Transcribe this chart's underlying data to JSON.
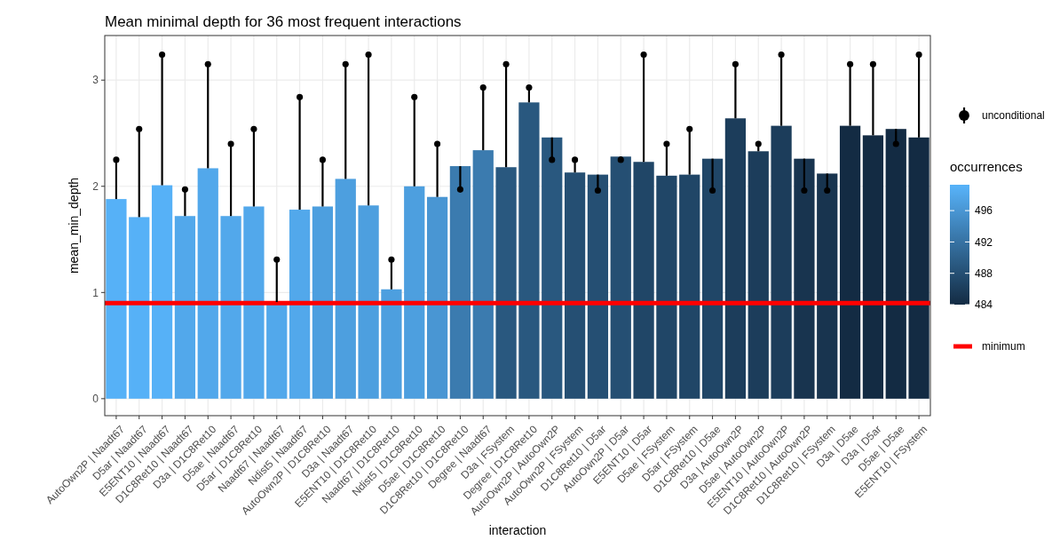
{
  "chart_data": {
    "type": "bar",
    "title": "Mean minimal depth for 36 most frequent interactions",
    "xlabel": "interaction",
    "ylabel": "mean_min_depth",
    "clabel": "occurrences",
    "categories": [
      "AutoOwn2P | Naadt67",
      "D5ar | Naadt67",
      "E5ENT10 | Naadt67",
      "D1C8Ret10 | Naadt67",
      "D3a | D1C8Ret10",
      "D5ae | Naadt67",
      "D5ar | D1C8Ret10",
      "Naadt67 | Naadt67",
      "Ndist5 | Naadt67",
      "AutoOwn2P | D1C8Ret10",
      "D3a | Naadt67",
      "E5ENT10 | D1C8Ret10",
      "Naadt67 | D1C8Ret10",
      "Ndist5 | D1C8Ret10",
      "D5ae | D1C8Ret10",
      "D1C8Ret10 | D1C8Ret10",
      "Degree | Naadt67",
      "D3a | FSystem",
      "Degree | D1C8Ret10",
      "AutoOwn2P | AutoOwn2P",
      "AutoOwn2P | FSystem",
      "D1C8Ret10 | D5ar",
      "AutoOwn2P | D5ar",
      "E5ENT10 | D5ar",
      "D5ae | FSystem",
      "D5ar | FSystem",
      "D1C8Ret10 | D5ae",
      "D3a | AutoOwn2P",
      "D5ae | AutoOwn2P",
      "E5ENT10 | AutoOwn2P",
      "D1C8Ret10 | AutoOwn2P",
      "D1C8Ret10 | FSystem",
      "D3a | D5ae",
      "D3a | D5ar",
      "D5ae | D5ae",
      "E5ENT10 | FSystem"
    ],
    "series": [
      {
        "values": [
          1.88,
          1.71,
          2.01,
          1.72,
          2.17,
          1.72,
          1.81,
          0.91,
          1.78,
          1.81,
          2.07,
          1.82,
          1.03,
          2.0,
          1.9,
          2.19,
          2.34,
          2.18,
          2.79,
          2.46,
          2.13,
          2.11,
          2.28,
          2.23,
          2.1,
          2.11,
          2.26,
          2.64,
          2.33,
          2.57,
          2.26,
          2.12,
          2.57,
          2.48,
          2.54,
          2.46
        ],
        "cvalues": [
          499,
          499,
          499,
          498,
          498,
          498,
          498,
          498,
          498,
          497,
          497,
          497,
          497,
          497,
          496,
          493,
          493,
          489,
          489,
          489,
          488,
          488,
          488,
          487,
          487,
          487,
          487,
          486,
          486,
          486,
          485,
          485,
          484,
          484,
          484,
          484
        ],
        "colors": [
          "#56b1f7",
          "#56b1f7",
          "#56b1f7",
          "#52a8eb",
          "#52a8eb",
          "#52a8eb",
          "#52a8eb",
          "#52a8eb",
          "#52a8eb",
          "#4d9fdf",
          "#4d9fdf",
          "#4d9fdf",
          "#4d9fdf",
          "#4d9fdf",
          "#4996d3",
          "#3b7baf",
          "#3b7baf",
          "#29587f",
          "#29587f",
          "#29587f",
          "#254f73",
          "#254f73",
          "#254f73",
          "#204667",
          "#204667",
          "#204667",
          "#204667",
          "#1c3d5b",
          "#1c3d5b",
          "#1c3d5b",
          "#18344f",
          "#18344f",
          "#132b43",
          "#132b43",
          "#132b43",
          "#132b43"
        ]
      },
      {
        "type": "scatter",
        "name": "unconditional",
        "color": "#000000",
        "values": [
          2.25,
          2.54,
          3.24,
          1.97,
          3.15,
          2.4,
          2.54,
          1.31,
          2.84,
          2.25,
          3.15,
          3.24,
          1.31,
          2.84,
          2.4,
          1.97,
          2.93,
          3.15,
          2.93,
          2.25,
          2.25,
          1.96,
          2.25,
          3.24,
          2.4,
          2.54,
          1.96,
          3.15,
          2.4,
          3.24,
          1.96,
          1.96,
          3.15,
          3.15,
          2.4,
          3.24
        ],
        "errors": [
          [
            1.88,
            2.25
          ],
          [
            1.71,
            2.54
          ],
          [
            2.01,
            3.24
          ],
          [
            1.72,
            1.97
          ],
          [
            2.17,
            3.15
          ],
          [
            1.72,
            2.4
          ],
          [
            1.81,
            2.54
          ],
          [
            0.91,
            1.31
          ],
          [
            1.78,
            2.84
          ],
          [
            1.81,
            2.25
          ],
          [
            2.07,
            3.15
          ],
          [
            1.82,
            3.24
          ],
          [
            1.03,
            1.31
          ],
          [
            2.0,
            2.84
          ],
          [
            1.9,
            2.4
          ],
          [
            1.97,
            2.19
          ],
          [
            2.34,
            2.93
          ],
          [
            2.18,
            3.15
          ],
          [
            2.79,
            2.93
          ],
          [
            2.25,
            2.46
          ],
          [
            2.13,
            2.25
          ],
          [
            1.96,
            2.11
          ],
          [
            2.25,
            2.28
          ],
          [
            2.23,
            3.24
          ],
          [
            2.1,
            2.4
          ],
          [
            2.11,
            2.54
          ],
          [
            1.96,
            2.26
          ],
          [
            2.64,
            3.15
          ],
          [
            2.33,
            2.4
          ],
          [
            2.57,
            3.24
          ],
          [
            1.96,
            2.26
          ],
          [
            1.96,
            2.12
          ],
          [
            2.57,
            3.15
          ],
          [
            2.48,
            3.15
          ],
          [
            2.4,
            2.54
          ],
          [
            2.46,
            3.24
          ]
        ]
      }
    ],
    "ref_lines": [
      {
        "axis": "y",
        "value": 0.9,
        "label": "minimum",
        "color": "#ff0000"
      }
    ],
    "ylim": [
      -0.16,
      3.42
    ],
    "yticks": [
      0,
      1,
      2,
      3
    ],
    "clim": [
      484,
      499.3
    ],
    "cticks": [
      484,
      488,
      492,
      496
    ],
    "grid": true,
    "legend": "right",
    "marker": "circle"
  }
}
